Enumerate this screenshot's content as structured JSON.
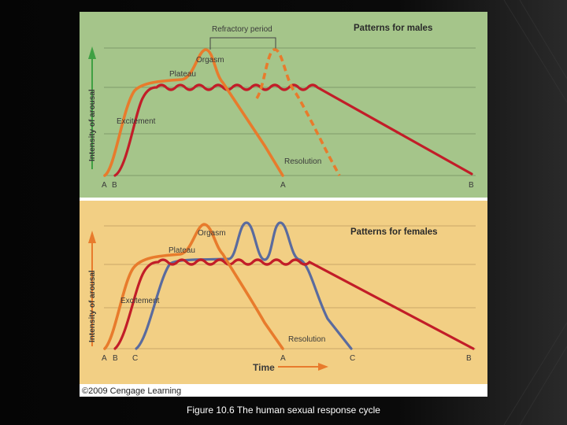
{
  "colors": {
    "males_bg": "#a5c58a",
    "females_bg": "#f2cf84",
    "orange": "#e87b2c",
    "red": "#c21d28",
    "blue": "#5a6b9e",
    "arrow_male": "#3fa043",
    "arrow_female": "#e87b2c"
  },
  "male_panel": {
    "title": "Patterns for males",
    "refractory_label": "Refractory period",
    "ylabel": "Intensity of arousal",
    "stages": {
      "orgasm": "Orgasm",
      "plateau": "Plateau",
      "excitement": "Excitement",
      "resolution": "Resolution"
    },
    "xticks": {
      "a1": "A",
      "b1": "B",
      "a2": "A",
      "b2": "B"
    }
  },
  "female_panel": {
    "title": "Patterns for females",
    "ylabel": "Intensity of arousal",
    "xlabel": "Time",
    "stages": {
      "orgasm": "Orgasm",
      "plateau": "Plateau",
      "excitement": "Excitement",
      "resolution": "Resolution"
    },
    "xticks": {
      "a1": "A",
      "b1": "B",
      "c1": "C",
      "a2": "A",
      "c2": "C",
      "b2": "B"
    }
  },
  "copyright": "©2009 Cengage Learning",
  "caption": "Figure 10.6  The human sexual response cycle"
}
